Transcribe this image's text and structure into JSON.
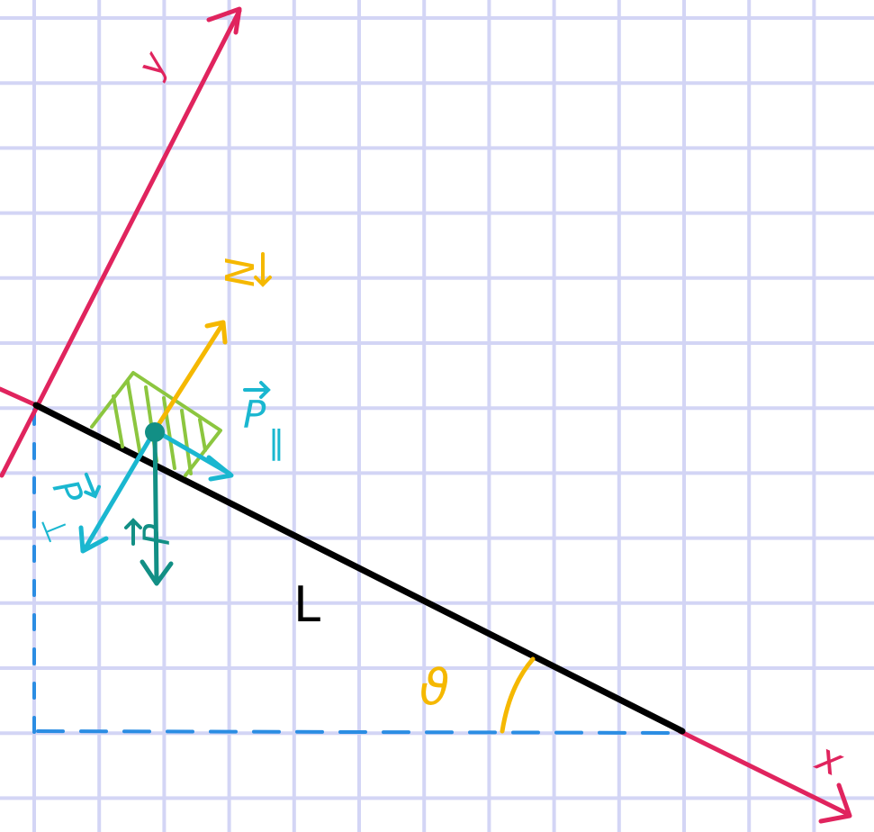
{
  "labels": {
    "x_axis": "x",
    "y_axis": "y",
    "normal_force": "N",
    "weight_parallel": "P",
    "weight_parallel_sub": "‖",
    "weight_perpendicular": "P",
    "weight_perpendicular_sub": "⊥",
    "weight": "P",
    "length": "L",
    "angle": "ϑ"
  },
  "colors": {
    "paper": "#ffffff",
    "grid": "#d3d5f5",
    "axes": "#e0245e",
    "incline": "#000000",
    "normal_force": "#f5b800",
    "weight_components": "#1ab7d0",
    "weight": "#128f85",
    "block": "#8cc63f",
    "dashed_guides": "#2b8de3",
    "angle_mark": "#f5b800"
  },
  "icons": {
    "arrowhead": "open-v-arrowhead",
    "vector_mark": "over-arrow"
  }
}
